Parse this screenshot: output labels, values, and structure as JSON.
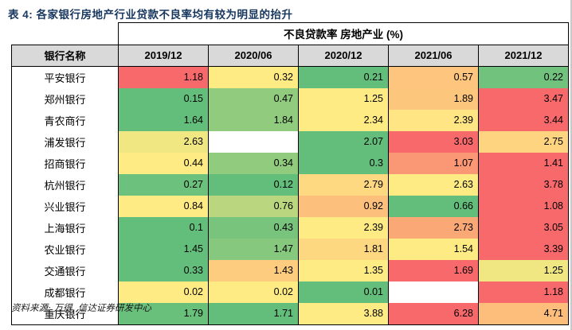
{
  "figure": {
    "title": "表 4: 各家银行房地产行业贷款不良率均有较为明显的抬升",
    "source_note": "资料来源: 万得, 信达证券研发中心"
  },
  "table": {
    "merged_header": "不良贷款率 房地产业 (%)",
    "bank_column_header": "银行名称",
    "date_headers": [
      "2019/12",
      "2020/06",
      "2020/12",
      "2021/06",
      "2021/12"
    ],
    "rows": [
      {
        "bank": "平安银行",
        "values": [
          1.18,
          0.32,
          0.21,
          0.57,
          0.22
        ]
      },
      {
        "bank": "郑州银行",
        "values": [
          0.15,
          0.47,
          1.25,
          1.89,
          3.47
        ]
      },
      {
        "bank": "青农商行",
        "values": [
          1.64,
          1.84,
          2.34,
          2.39,
          3.44
        ]
      },
      {
        "bank": "浦发银行",
        "values": [
          2.63,
          null,
          2.07,
          3.03,
          2.75
        ]
      },
      {
        "bank": "招商银行",
        "values": [
          0.44,
          0.34,
          0.3,
          1.07,
          1.41
        ]
      },
      {
        "bank": "杭州银行",
        "values": [
          0.27,
          0.12,
          2.79,
          2.63,
          3.78
        ]
      },
      {
        "bank": "兴业银行",
        "values": [
          0.84,
          0.76,
          0.92,
          0.66,
          1.08
        ]
      },
      {
        "bank": "上海银行",
        "values": [
          0.1,
          0.43,
          2.39,
          2.73,
          3.05
        ]
      },
      {
        "bank": "农业银行",
        "values": [
          1.45,
          1.47,
          1.81,
          1.54,
          3.39
        ]
      },
      {
        "bank": "交通银行",
        "values": [
          0.33,
          1.43,
          1.35,
          1.69,
          1.25
        ]
      },
      {
        "bank": "成都银行",
        "values": [
          0.02,
          0.02,
          0.01,
          null,
          1.18
        ]
      },
      {
        "bank": "重庆银行",
        "values": [
          1.79,
          1.71,
          3.88,
          6.28,
          4.71
        ]
      }
    ]
  },
  "heatmap": {
    "rule": "per-row 3-color scale, midpoint = row median",
    "min_color": "#63BE7B",
    "mid_color": "#FFEB84",
    "max_color": "#F8696B",
    "blank_color": "#FFFFFF"
  },
  "colors": {
    "title_text": "#17375E",
    "header_bg": "#D9D9D9",
    "border": "#000000",
    "cell_text": "#000000"
  }
}
